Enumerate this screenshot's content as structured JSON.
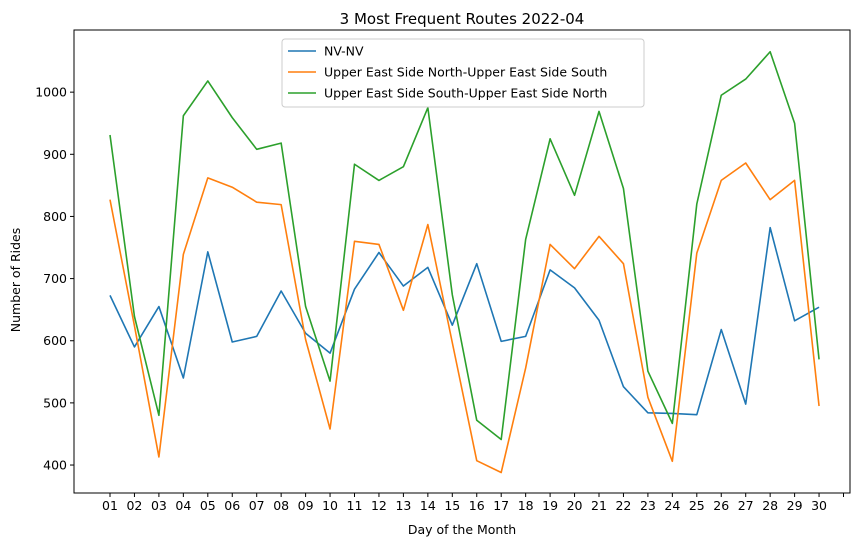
{
  "chart_data": {
    "type": "line",
    "title": "3 Most Frequent Routes 2022-04",
    "xlabel": "Day of the Month",
    "ylabel": "Number of Rides",
    "categories": [
      "01",
      "02",
      "03",
      "04",
      "05",
      "06",
      "07",
      "08",
      "09",
      "10",
      "11",
      "12",
      "13",
      "14",
      "15",
      "16",
      "17",
      "18",
      "19",
      "20",
      "21",
      "22",
      "23",
      "24",
      "25",
      "26",
      "27",
      "28",
      "29",
      "30"
    ],
    "yticks": [
      400,
      500,
      600,
      700,
      800,
      900,
      1000
    ],
    "ylim": [
      355,
      1100
    ],
    "grid": false,
    "legend_position": "top-center",
    "series": [
      {
        "name": "NV-NV",
        "color": "#1f77b4",
        "values": [
          673,
          590,
          655,
          540,
          743,
          598,
          607,
          680,
          612,
          580,
          683,
          742,
          688,
          718,
          625,
          724,
          599,
          607,
          714,
          685,
          633,
          526,
          484,
          483,
          481,
          618,
          498,
          782,
          632,
          654
        ]
      },
      {
        "name": "Upper East Side North-Upper East Side South",
        "color": "#ff7f0e",
        "values": [
          827,
          624,
          413,
          739,
          862,
          847,
          823,
          819,
          602,
          458,
          760,
          755,
          649,
          787,
          597,
          407,
          388,
          556,
          755,
          716,
          768,
          724,
          509,
          406,
          741,
          858,
          886,
          827,
          858,
          495
        ]
      },
      {
        "name": "Upper East Side South-Upper East Side North",
        "color": "#2ca02c",
        "values": [
          931,
          639,
          480,
          962,
          1018,
          959,
          908,
          918,
          655,
          535,
          884,
          858,
          880,
          975,
          674,
          472,
          441,
          763,
          925,
          834,
          969,
          845,
          551,
          467,
          820,
          995,
          1021,
          1065,
          950,
          570
        ]
      }
    ]
  }
}
